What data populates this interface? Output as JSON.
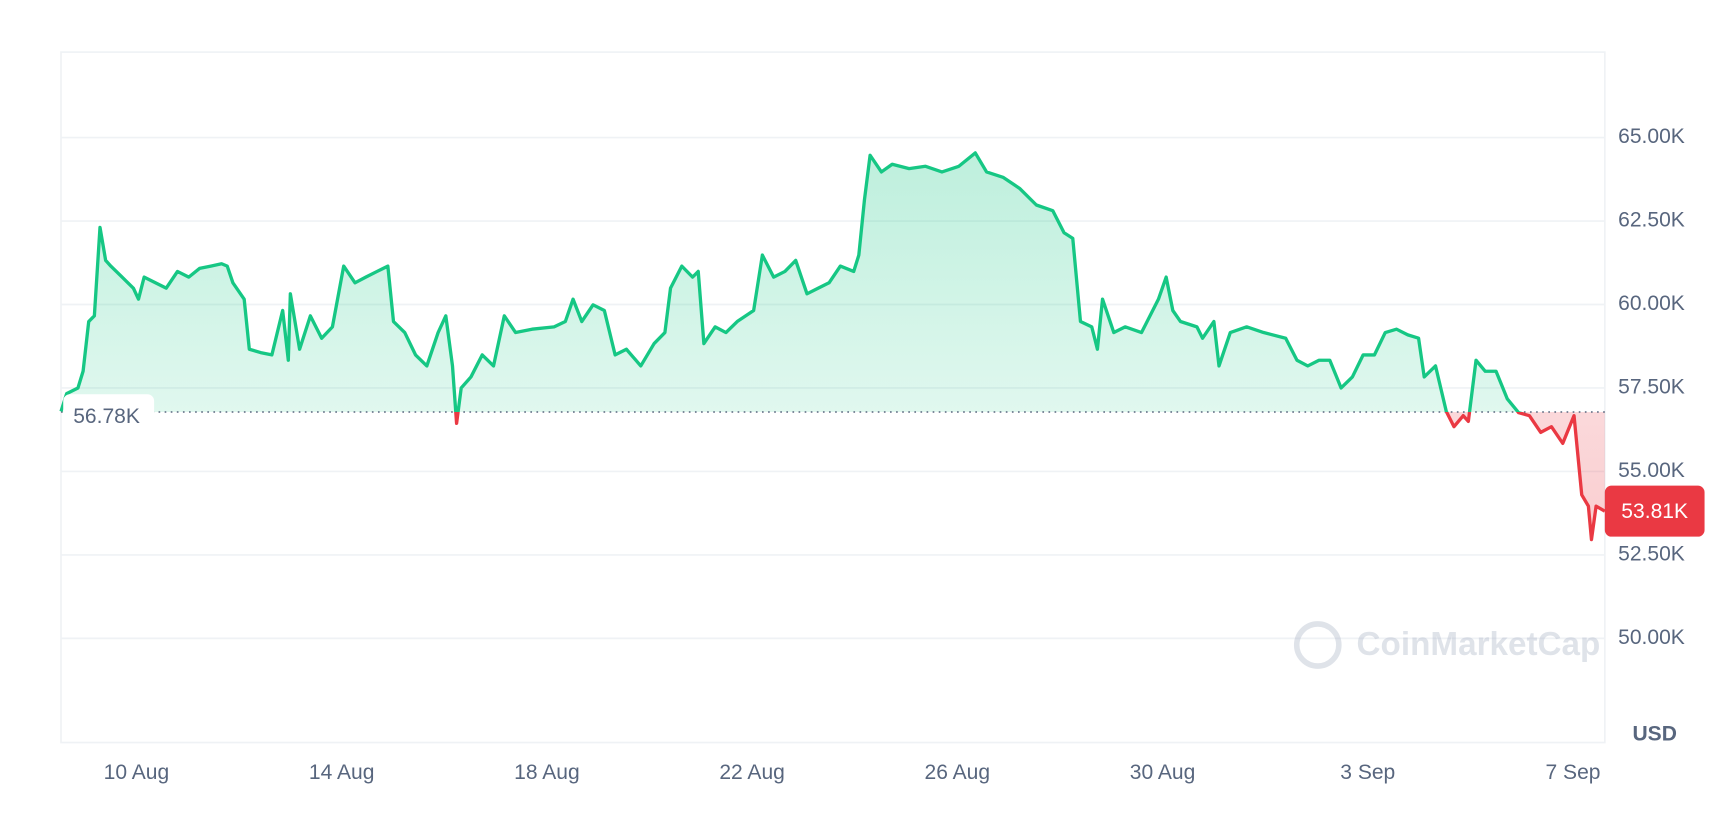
{
  "chart_data": {
    "type": "line",
    "color": "#16c784",
    "down_color": "#ea3943",
    "grid": true,
    "y_unit": "USD",
    "watermark": "CoinMarketCap",
    "baseline": {
      "value": 56780,
      "label": "56.78K"
    },
    "last_price": {
      "value": 53810,
      "label": "53.81K"
    },
    "xlim": [
      8.53,
      38.62
    ],
    "ylim": [
      46880,
      67560
    ],
    "xticks": [
      {
        "value": 10,
        "label": "10 Aug"
      },
      {
        "value": 14,
        "label": "14 Aug"
      },
      {
        "value": 18,
        "label": "18 Aug"
      },
      {
        "value": 22,
        "label": "22 Aug"
      },
      {
        "value": 26,
        "label": "26 Aug"
      },
      {
        "value": 30,
        "label": "30 Aug"
      },
      {
        "value": 34,
        "label": "3 Sep"
      },
      {
        "value": 38,
        "label": "7 Sep"
      }
    ],
    "yticks": [
      {
        "value": 50000,
        "label": "50.00K"
      },
      {
        "value": 52500,
        "label": "52.50K"
      },
      {
        "value": 55000,
        "label": "55.00K"
      },
      {
        "value": 57500,
        "label": "57.50K"
      },
      {
        "value": 60000,
        "label": "60.00K"
      },
      {
        "value": 62500,
        "label": "62.50K"
      },
      {
        "value": 65000,
        "label": "65.00K"
      }
    ],
    "x": [
      8.53,
      8.64,
      8.86,
      8.96,
      9.07,
      9.18,
      9.29,
      9.4,
      9.5,
      9.72,
      9.94,
      10.04,
      10.15,
      10.37,
      10.58,
      10.8,
      11.02,
      11.23,
      11.45,
      11.66,
      11.77,
      11.88,
      12.1,
      12.2,
      12.42,
      12.64,
      12.85,
      12.96,
      13.0,
      13.18,
      13.39,
      13.61,
      13.82,
      14.04,
      14.26,
      14.47,
      14.69,
      14.9,
      15.01,
      15.23,
      15.44,
      15.66,
      15.88,
      16.03,
      16.16,
      16.24,
      16.33,
      16.52,
      16.74,
      16.96,
      17.17,
      17.39,
      17.71,
      18.14,
      18.36,
      18.51,
      18.68,
      18.9,
      19.12,
      19.33,
      19.55,
      19.83,
      20.09,
      20.3,
      20.41,
      20.63,
      20.84,
      20.95,
      21.06,
      21.28,
      21.49,
      21.71,
      22.03,
      22.2,
      22.42,
      22.64,
      22.85,
      23.07,
      23.29,
      23.5,
      23.72,
      23.98,
      24.08,
      24.19,
      24.3,
      24.52,
      24.73,
      25.06,
      25.38,
      25.7,
      26.03,
      26.35,
      26.57,
      26.89,
      27.22,
      27.54,
      27.86,
      28.08,
      28.25,
      28.4,
      28.62,
      28.73,
      28.83,
      29.05,
      29.27,
      29.59,
      29.92,
      30.07,
      30.2,
      30.35,
      30.67,
      30.78,
      31.0,
      31.1,
      31.32,
      31.64,
      31.97,
      32.4,
      32.62,
      32.83,
      33.05,
      33.26,
      33.48,
      33.7,
      33.91,
      34.13,
      34.34,
      34.56,
      34.78,
      34.99,
      35.1,
      35.32,
      35.53,
      35.68,
      35.86,
      35.96,
      36.11,
      36.29,
      36.5,
      36.72,
      36.94,
      37.15,
      37.37,
      37.58,
      37.8,
      38.02,
      38.17,
      38.3,
      38.36,
      38.45,
      38.62
    ],
    "values": [
      56800,
      57330,
      57500,
      58000,
      59490,
      59660,
      62310,
      61320,
      61150,
      60820,
      60490,
      60160,
      60820,
      60650,
      60490,
      60990,
      60820,
      61080,
      61150,
      61220,
      61150,
      60650,
      60160,
      58660,
      58560,
      58490,
      59820,
      58330,
      60320,
      58660,
      59660,
      58990,
      59330,
      61150,
      60650,
      60820,
      60990,
      61150,
      59490,
      59160,
      58490,
      58160,
      59160,
      59660,
      58160,
      56440,
      57500,
      57830,
      58490,
      58160,
      59660,
      59160,
      59260,
      59330,
      59490,
      60160,
      59490,
      59990,
      59820,
      58490,
      58660,
      58160,
      58830,
      59160,
      60490,
      61150,
      60820,
      60990,
      58830,
      59330,
      59160,
      59490,
      59820,
      61480,
      60820,
      60990,
      61320,
      60320,
      60490,
      60650,
      61150,
      60990,
      61480,
      63140,
      64470,
      63970,
      64200,
      64070,
      64140,
      63970,
      64140,
      64540,
      63970,
      63810,
      63470,
      62980,
      62810,
      62150,
      61980,
      59490,
      59330,
      58660,
      60160,
      59160,
      59330,
      59160,
      60160,
      60820,
      59820,
      59490,
      59330,
      58990,
      59490,
      58160,
      59160,
      59330,
      59160,
      58990,
      58330,
      58160,
      58330,
      58330,
      57500,
      57830,
      58490,
      58490,
      59160,
      59260,
      59090,
      58990,
      57830,
      58160,
      56800,
      56340,
      56670,
      56500,
      58330,
      58000,
      58000,
      57170,
      56760,
      56670,
      56170,
      56340,
      55840,
      56670,
      54300,
      53960,
      52960,
      53960,
      53810
    ]
  }
}
